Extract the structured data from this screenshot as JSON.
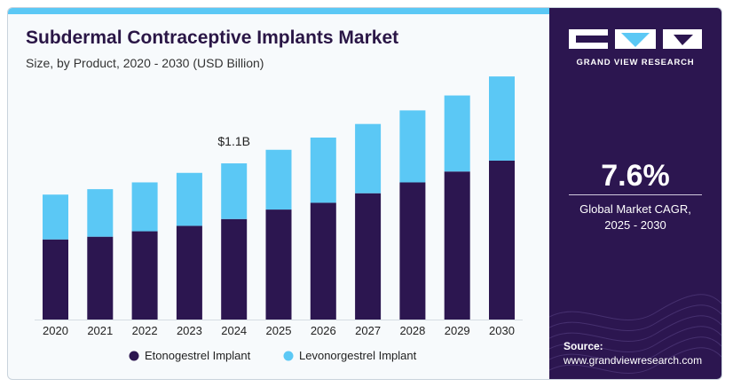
{
  "header": {
    "title": "Subdermal Contraceptive Implants Market",
    "subtitle": "Size, by Product, 2020 - 2030 (USD Billion)"
  },
  "brand": {
    "name": "GRAND VIEW RESEARCH"
  },
  "cagr": {
    "value": "7.6%",
    "label_line1": "Global Market CAGR,",
    "label_line2": "2025 - 2030"
  },
  "source": {
    "label": "Source:",
    "url": "www.grandviewresearch.com"
  },
  "colors": {
    "etonogestrel": "#2c1650",
    "levonorgestrel": "#5bc8f5",
    "panel": "#2c1650"
  },
  "chart_data": {
    "type": "bar",
    "stacked": true,
    "categories": [
      "2020",
      "2021",
      "2022",
      "2023",
      "2024",
      "2025",
      "2026",
      "2027",
      "2028",
      "2029",
      "2030"
    ],
    "series": [
      {
        "name": "Etonogestrel Implant",
        "values": [
          0.59,
          0.61,
          0.65,
          0.69,
          0.74,
          0.81,
          0.86,
          0.93,
          1.01,
          1.09,
          1.17
        ]
      },
      {
        "name": "Levonorgestrel Implant",
        "values": [
          0.33,
          0.35,
          0.36,
          0.39,
          0.41,
          0.44,
          0.48,
          0.51,
          0.53,
          0.56,
          0.62
        ]
      }
    ],
    "annotations": [
      {
        "category": "2024",
        "text": "$1.1B"
      }
    ],
    "legend": "bottom-center"
  }
}
